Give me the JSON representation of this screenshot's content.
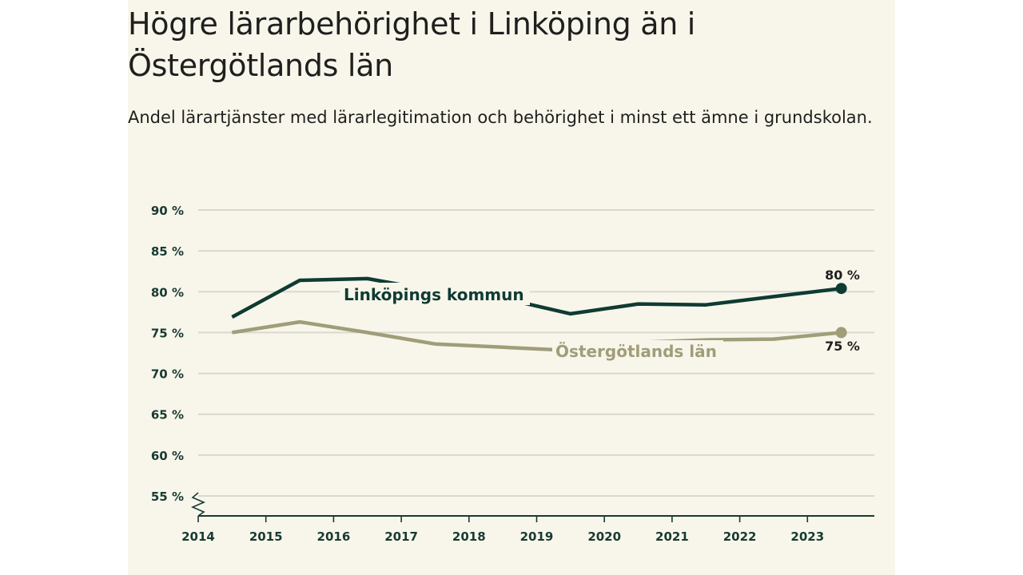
{
  "chart_data": {
    "type": "line",
    "title": "Högre lärarbehörighet i Linköping än i Östergötlands län",
    "subtitle": "Andel lärartjänster med lärarlegitimation och behörighet i minst ett ämne i grundskolan.",
    "x_ticks": [
      "2014",
      "2015",
      "2016",
      "2017",
      "2018",
      "2019",
      "2020",
      "2021",
      "2022",
      "2023"
    ],
    "y_ticks": [
      {
        "value": 90,
        "label": "90 %"
      },
      {
        "value": 85,
        "label": "85 %"
      },
      {
        "value": 80,
        "label": "80 %"
      },
      {
        "value": 75,
        "label": "75 %"
      },
      {
        "value": 70,
        "label": "70 %"
      },
      {
        "value": 65,
        "label": "65 %"
      },
      {
        "value": 60,
        "label": "60 %"
      },
      {
        "value": 55,
        "label": "55 %"
      }
    ],
    "ylim": [
      55,
      90
    ],
    "grid": true,
    "axis_break": true,
    "series": [
      {
        "name": "Linköpings kommun",
        "color": "#0f3b33",
        "x": [
          2014.5,
          2015.5,
          2016.5,
          2017.5,
          2018.5,
          2019.5,
          2020.5,
          2021.5,
          2022.5,
          2023.5
        ],
        "values": [
          76.9,
          81.4,
          81.6,
          80.1,
          79.2,
          77.3,
          78.5,
          78.4,
          79.4,
          80.4
        ],
        "end_label": "80 %"
      },
      {
        "name": "Östergötlands län",
        "color": "#a09d7a",
        "x": [
          2014.5,
          2015.5,
          2016.5,
          2017.5,
          2018.5,
          2019.5,
          2020.5,
          2021.5,
          2022.5,
          2023.5
        ],
        "values": [
          75.0,
          76.3,
          75.0,
          73.6,
          73.2,
          72.8,
          73.8,
          74.1,
          74.2,
          75.0
        ],
        "end_label": "75 %"
      }
    ]
  }
}
